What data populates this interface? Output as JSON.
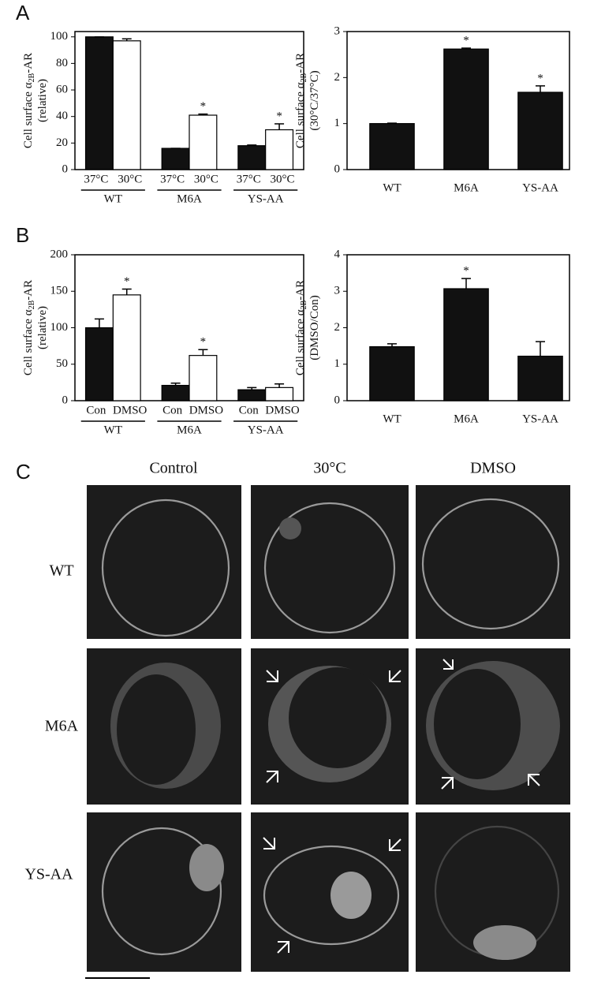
{
  "panels": [
    "A",
    "B",
    "C"
  ],
  "chart_data": [
    {
      "type": "grouped-bar",
      "categories": [
        "WT",
        "M6A",
        "YS-AA"
      ],
      "series": [
        {
          "name": "37°C",
          "color": "#111111",
          "values": [
            100,
            16,
            18
          ],
          "errors": [
            0,
            0,
            0.5
          ],
          "markers": [
            null,
            null,
            null
          ]
        },
        {
          "name": "30°C",
          "color": "#ffffff",
          "values": [
            97,
            41,
            30
          ],
          "errors": [
            1.5,
            0.8,
            4.5
          ],
          "markers": [
            null,
            "*",
            "*"
          ]
        }
      ],
      "ylabel": {
        "main": "Cell surface α",
        "sub": "2B",
        "rest": "-AR",
        "line2": "(relative)"
      },
      "ylim": [
        0,
        104
      ],
      "yticks": [
        0,
        20,
        40,
        60,
        80,
        100
      ]
    },
    {
      "type": "bar",
      "categories": [
        "WT",
        "M6A",
        "YS-AA"
      ],
      "color": "#111111",
      "values": [
        1.0,
        2.62,
        1.68
      ],
      "errors": [
        0.01,
        0.02,
        0.14
      ],
      "markers": [
        null,
        "*",
        "*"
      ],
      "ylabel": {
        "main": "Cell surface α",
        "sub": "2B",
        "rest": "-AR",
        "line2": "(30°C/37°C)"
      },
      "ylim": [
        0,
        3
      ],
      "yticks": [
        0,
        1,
        2,
        3
      ]
    },
    {
      "type": "grouped-bar",
      "categories": [
        "WT",
        "M6A",
        "YS-AA"
      ],
      "series": [
        {
          "name": "Con",
          "color": "#111111",
          "values": [
            100,
            21,
            15
          ],
          "errors": [
            12,
            3,
            3
          ],
          "markers": [
            null,
            null,
            null
          ]
        },
        {
          "name": "DMSO",
          "color": "#ffffff",
          "values": [
            145,
            62,
            18
          ],
          "errors": [
            8,
            8,
            5
          ],
          "markers": [
            "*",
            "*",
            null
          ]
        }
      ],
      "ylabel": {
        "main": "Cell surface α",
        "sub": "2B",
        "rest": "-AR",
        "line2": "(relative)"
      },
      "ylim": [
        0,
        200
      ],
      "yticks": [
        0,
        50,
        100,
        150,
        200
      ]
    },
    {
      "type": "bar",
      "categories": [
        "WT",
        "M6A",
        "YS-AA"
      ],
      "color": "#111111",
      "values": [
        1.48,
        3.07,
        1.22
      ],
      "errors": [
        0.08,
        0.28,
        0.4
      ],
      "markers": [
        null,
        "*",
        null
      ],
      "ylabel": {
        "main": "Cell surface α",
        "sub": "2B",
        "rest": "-AR",
        "line2": "(DMSO/Con)"
      },
      "ylim": [
        0,
        4
      ],
      "yticks": [
        0,
        1,
        2,
        3,
        4
      ]
    }
  ],
  "panel_c": {
    "columns": [
      "Control",
      "30°C",
      "DMSO"
    ],
    "rows": [
      "WT",
      "M6A",
      "YS-AA"
    ]
  }
}
